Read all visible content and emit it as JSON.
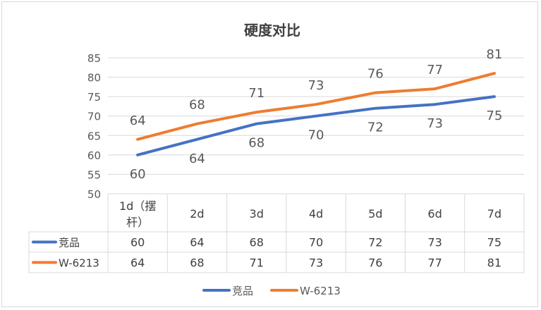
{
  "chart_data": {
    "type": "line",
    "title": "硬度对比",
    "categories": [
      "1d（摆杆）",
      "2d",
      "3d",
      "4d",
      "5d",
      "6d",
      "7d"
    ],
    "category_lines": [
      [
        "1d（摆",
        "杆）"
      ],
      [
        "2d"
      ],
      [
        "3d"
      ],
      [
        "4d"
      ],
      [
        "5d"
      ],
      [
        "6d"
      ],
      [
        "7d"
      ]
    ],
    "series": [
      {
        "name": "竞品",
        "color": "#4472c4",
        "values": [
          60,
          64,
          68,
          70,
          72,
          73,
          75
        ],
        "label_position": "below"
      },
      {
        "name": "W-6213",
        "color": "#ed7d31",
        "values": [
          64,
          68,
          71,
          73,
          76,
          77,
          81
        ],
        "label_position": "above"
      }
    ],
    "ylim": [
      50,
      85
    ],
    "yticks": [
      50,
      55,
      60,
      65,
      70,
      75,
      80,
      85
    ],
    "grid": true,
    "data_table": true,
    "legend": "bottom"
  }
}
